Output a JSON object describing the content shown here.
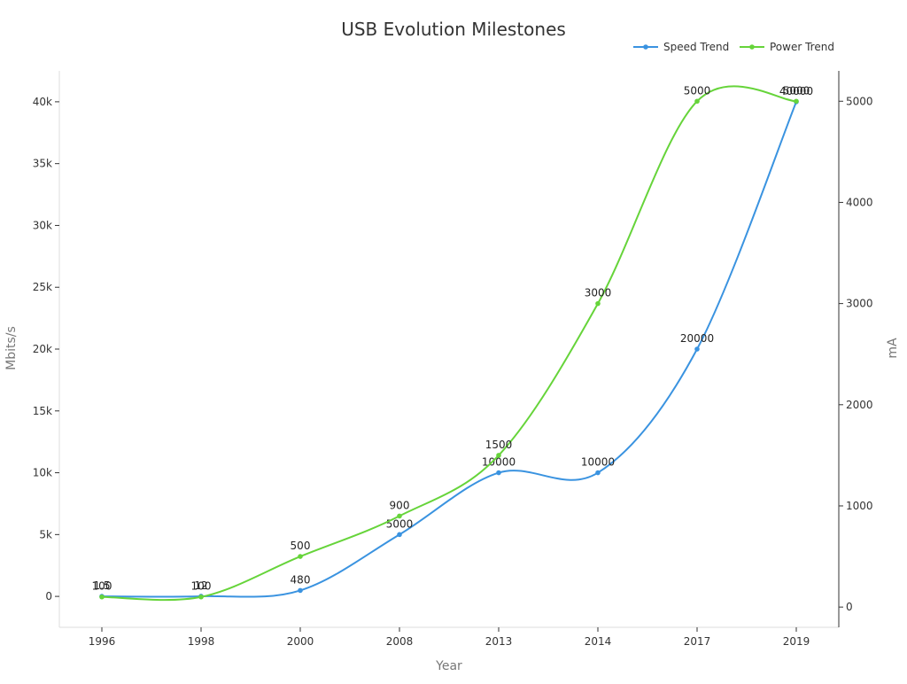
{
  "chart_data": {
    "type": "line",
    "title": "USB Evolution Milestones",
    "xlabel": "Year",
    "ylabel_left": "Mbits/s",
    "ylabel_right": "mA",
    "categories": [
      "1996",
      "1998",
      "2000",
      "2008",
      "2013",
      "2014",
      "2017",
      "2019"
    ],
    "y_left_lim": [
      -2500,
      42500
    ],
    "y_left_ticks": [
      0,
      5000,
      10000,
      15000,
      20000,
      25000,
      30000,
      35000,
      40000
    ],
    "y_left_tick_labels": [
      "0",
      "5k",
      "10k",
      "15k",
      "20k",
      "25k",
      "30k",
      "35k",
      "40k"
    ],
    "y_right_lim": [
      -200,
      5300
    ],
    "y_right_ticks": [
      0,
      1000,
      2000,
      3000,
      4000,
      5000
    ],
    "y_right_tick_labels": [
      "0",
      "1000",
      "2000",
      "3000",
      "4000",
      "5000"
    ],
    "legend_position": "top-right",
    "grid": false,
    "series": [
      {
        "name": "Speed Trend",
        "axis": "left",
        "color": "#3a93e0",
        "values": [
          1.5,
          12,
          480,
          5000,
          10000,
          10000,
          20000,
          40000
        ],
        "labels": [
          "1.5",
          "12",
          "480",
          "5000",
          "10000",
          "10000",
          "20000",
          "40000"
        ]
      },
      {
        "name": "Power Trend",
        "axis": "right",
        "color": "#66d43a",
        "values": [
          100,
          100,
          500,
          900,
          1500,
          3000,
          5000,
          5000
        ],
        "labels": [
          "100",
          "100",
          "500",
          "900",
          "1500",
          "3000",
          "5000",
          "5000"
        ]
      }
    ]
  }
}
